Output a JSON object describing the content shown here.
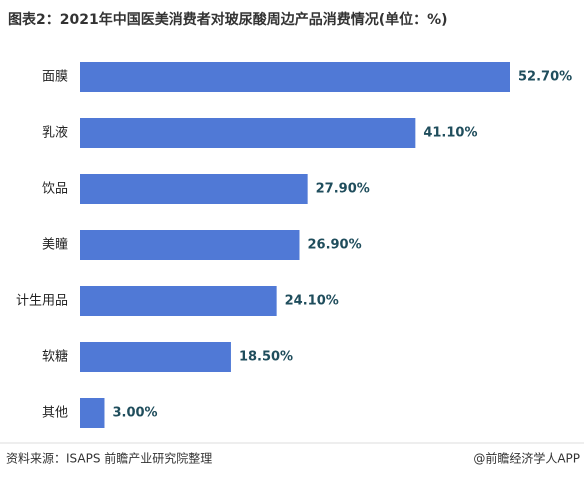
{
  "chart_data": {
    "type": "bar",
    "orientation": "horizontal",
    "title": "图表2：2021年中国医美消费者对玻尿酸周边产品消费情况(单位：%)",
    "categories": [
      "面膜",
      "乳液",
      "饮品",
      "美瞳",
      "计生用品",
      "软糖",
      "其他"
    ],
    "values": [
      52.7,
      41.1,
      27.9,
      26.9,
      24.1,
      18.5,
      3.0
    ],
    "value_labels": [
      "52.70%",
      "41.10%",
      "27.90%",
      "26.90%",
      "24.10%",
      "18.50%",
      "3.00%"
    ],
    "color": "#5079d6",
    "source": "资料来源：ISAPS 前瞻产业研究院整理",
    "credit": "@前瞻经济学人APP"
  }
}
